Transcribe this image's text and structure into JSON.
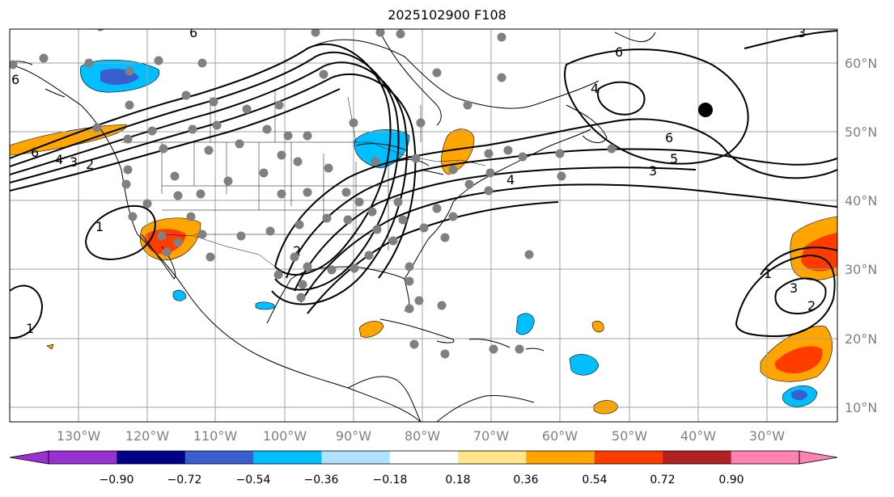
{
  "title": "2025102900 F108",
  "lon_ticks": [
    "130°W",
    "120°W",
    "110°W",
    "100°W",
    "90°W",
    "80°W",
    "70°W",
    "60°W",
    "50°W",
    "40°W",
    "30°W"
  ],
  "lat_ticks": [
    "60°N",
    "50°N",
    "40°N",
    "30°N",
    "20°N",
    "10°N"
  ],
  "colorbar": {
    "labels": [
      "−0.90",
      "−0.72",
      "−0.54",
      "−0.36",
      "−0.18",
      "0.18",
      "0.36",
      "0.54",
      "0.72",
      "0.90"
    ],
    "colors": [
      "#9b30d0",
      "#00008b",
      "#3a5fcd",
      "#00bfff",
      "#b0e2ff",
      "#ffffff",
      "#ffe68a",
      "#ffa500",
      "#ff3c00",
      "#b22222",
      "#ff82b4"
    ]
  },
  "contour_labels": [
    "6",
    "4",
    "3",
    "2",
    "6",
    "1",
    "1",
    "2",
    "6",
    "4",
    "6",
    "5",
    "3",
    "4",
    "1",
    "3",
    "2"
  ],
  "stations": [
    [
      124,
      33
    ],
    [
      54,
      72
    ],
    [
      160,
      88
    ],
    [
      110,
      78
    ],
    [
      196,
      75
    ],
    [
      250,
      78
    ],
    [
      230,
      118
    ],
    [
      264,
      126
    ],
    [
      305,
      135
    ],
    [
      345,
      130
    ],
    [
      400,
      92
    ],
    [
      390,
      40
    ],
    [
      495,
      42
    ],
    [
      540,
      30
    ],
    [
      620,
      46
    ],
    [
      470,
      40
    ],
    [
      540,
      90
    ],
    [
      620,
      96
    ],
    [
      578,
      130
    ],
    [
      520,
      152
    ],
    [
      437,
      152
    ],
    [
      380,
      168
    ],
    [
      356,
      168
    ],
    [
      330,
      160
    ],
    [
      268,
      155
    ],
    [
      238,
      160
    ],
    [
      188,
      162
    ],
    [
      160,
      130
    ],
    [
      120,
      158
    ],
    [
      158,
      172
    ],
    [
      202,
      184
    ],
    [
      258,
      186
    ],
    [
      296,
      178
    ],
    [
      348,
      192
    ],
    [
      368,
      200
    ],
    [
      406,
      208
    ],
    [
      464,
      200
    ],
    [
      514,
      196
    ],
    [
      560,
      210
    ],
    [
      604,
      190
    ],
    [
      628,
      186
    ],
    [
      646,
      194
    ],
    [
      692,
      190
    ],
    [
      694,
      218
    ],
    [
      756,
      184
    ],
    [
      158,
      210
    ],
    [
      156,
      228
    ],
    [
      216,
      218
    ],
    [
      248,
      240
    ],
    [
      220,
      242
    ],
    [
      182,
      252
    ],
    [
      282,
      224
    ],
    [
      326,
      214
    ],
    [
      348,
      240
    ],
    [
      380,
      238
    ],
    [
      428,
      238
    ],
    [
      444,
      250
    ],
    [
      460,
      262
    ],
    [
      492,
      250
    ],
    [
      540,
      258
    ],
    [
      580,
      228
    ],
    [
      606,
      214
    ],
    [
      604,
      236
    ],
    [
      560,
      268
    ],
    [
      524,
      282
    ],
    [
      550,
      294
    ],
    [
      498,
      272
    ],
    [
      164,
      268
    ],
    [
      200,
      292
    ],
    [
      220,
      300
    ],
    [
      250,
      290
    ],
    [
      298,
      292
    ],
    [
      334,
      286
    ],
    [
      370,
      278
    ],
    [
      404,
      270
    ],
    [
      430,
      272
    ],
    [
      466,
      284
    ],
    [
      486,
      298
    ],
    [
      456,
      316
    ],
    [
      438,
      332
    ],
    [
      410,
      334
    ],
    [
      380,
      330
    ],
    [
      364,
      318
    ],
    [
      344,
      340
    ],
    [
      374,
      352
    ],
    [
      372,
      368
    ],
    [
      506,
      330
    ],
    [
      506,
      348
    ],
    [
      518,
      372
    ],
    [
      506,
      382
    ],
    [
      546,
      378
    ],
    [
      654,
      315
    ],
    [
      512,
      426
    ],
    [
      550,
      438
    ],
    [
      610,
      432
    ],
    [
      642,
      432
    ],
    [
      236,
      268
    ],
    [
      206,
      312
    ],
    [
      260,
      318
    ],
    [
      16,
      80
    ]
  ],
  "center_marker": [
    872,
    136
  ]
}
